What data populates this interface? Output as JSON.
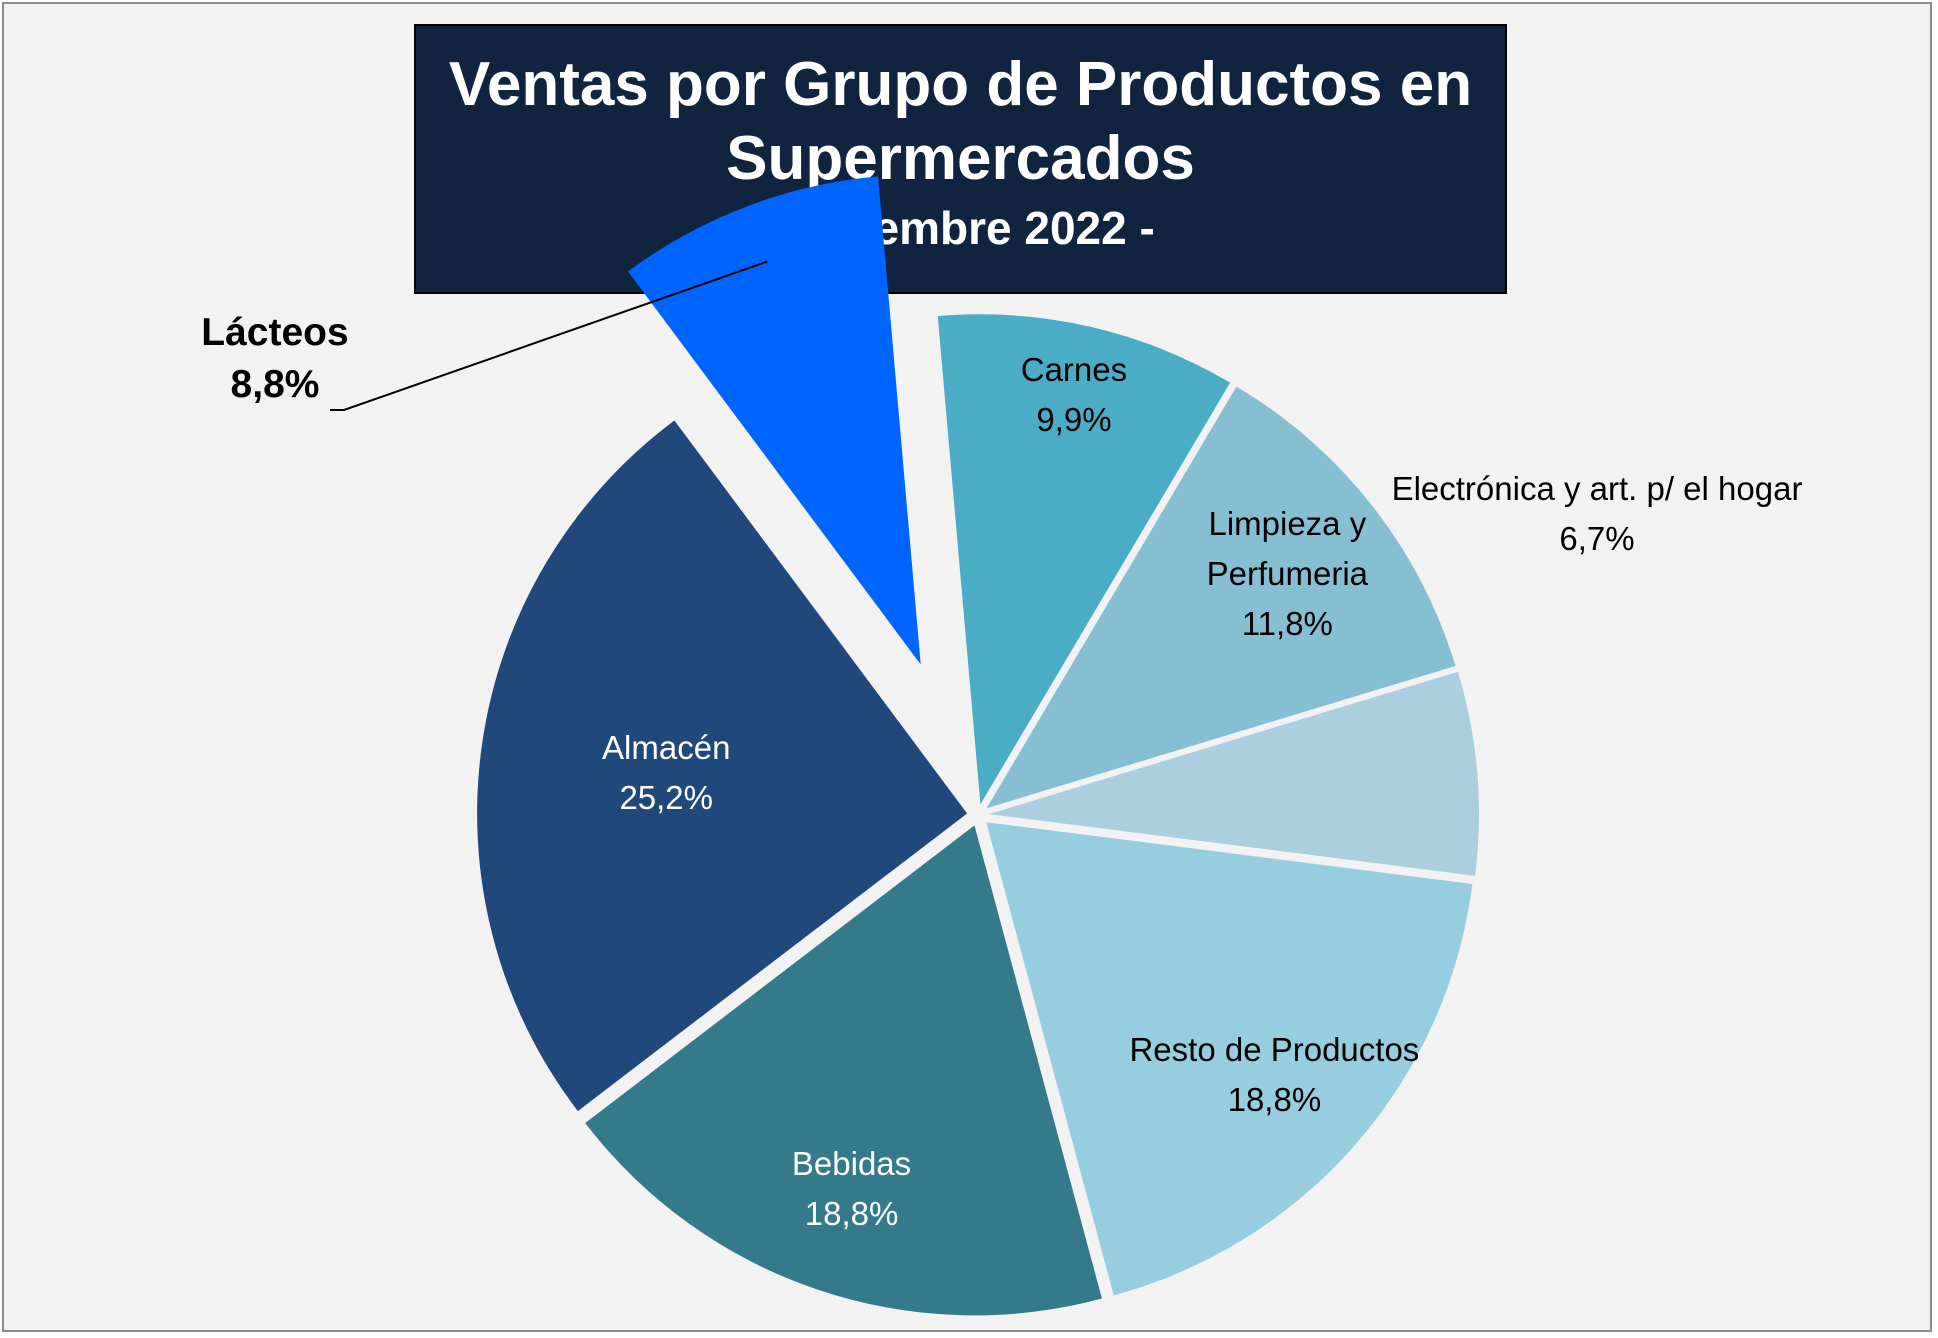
{
  "chart_data": {
    "type": "pie",
    "title": "Ventas por Grupo de Productos en Supermercados",
    "subtitle": "- diciembre 2022 -",
    "slices": [
      {
        "name": "Carnes",
        "value": 9.9,
        "label": "9,9%",
        "color": "#4bacc6",
        "text_color": "#000000"
      },
      {
        "name": "Limpieza y Perfumeria",
        "value": 11.8,
        "label": "11,8%",
        "color": "#86bfd1",
        "text_color": "#000000"
      },
      {
        "name": "Electrónica y art. p/ el hogar",
        "value": 6.7,
        "label": "6,7%",
        "color": "#abcfdf",
        "text_color": "#000000"
      },
      {
        "name": "Resto de Productos",
        "value": 18.8,
        "label": "18,8%",
        "color": "#96cddf",
        "text_color": "#000000"
      },
      {
        "name": "Bebidas",
        "value": 18.8,
        "label": "18,8%",
        "color": "#347a8b",
        "text_color": "#ffffff"
      },
      {
        "name": "Almacén",
        "value": 25.2,
        "label": "25,2%",
        "color": "#20487a",
        "text_color": "#ffffff"
      },
      {
        "name": "Lácteos",
        "value": 8.8,
        "label": "8,8%",
        "color": "#0064ff",
        "text_color": "#000000"
      }
    ]
  }
}
